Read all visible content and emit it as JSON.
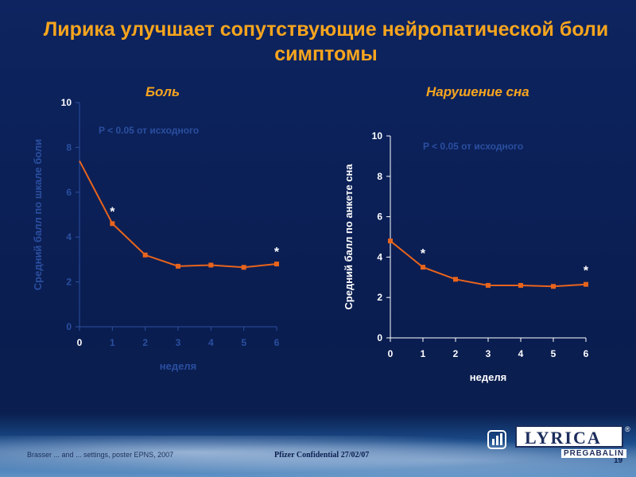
{
  "title": "Лирика улучшает сопутствующие нейропатической боли симптомы",
  "footer": {
    "reference": "Brasser ... and ... settings, poster EPNS, 2007",
    "confidential": "Pfizer Confidential 27/02/07",
    "page_number": "19"
  },
  "logo": {
    "brand": "LYRICA",
    "registered": "®",
    "sub": "PREGABALIN"
  },
  "icons": [
    "chart-icon",
    "speaker-icon"
  ],
  "colors": {
    "line": "#e8641c",
    "title": "#f7a51e",
    "axis_text": "#ffffff",
    "background": "#0b1f4f"
  },
  "chart_data": [
    {
      "type": "line",
      "title": "Боль",
      "xlabel": "неделя",
      "ylabel": "Средний балл по шкале боли",
      "xlim": [
        0,
        6
      ],
      "ylim": [
        0,
        10
      ],
      "x_ticks": [
        0,
        1,
        2,
        3,
        4,
        5,
        6
      ],
      "y_ticks": [
        0,
        2,
        4,
        6,
        8,
        10
      ],
      "x_tick_labels_visible": [
        "0"
      ],
      "y_tick_labels_visible": [
        "10"
      ],
      "annotation": "P < 0.05 от исходного",
      "series": [
        {
          "x": [
            0,
            1,
            2,
            3,
            4,
            5,
            6
          ],
          "y": [
            7.4,
            4.6,
            3.2,
            2.7,
            2.75,
            2.65,
            2.8
          ],
          "markers": [
            false,
            true,
            true,
            true,
            true,
            true,
            true
          ]
        }
      ],
      "significance": [
        {
          "x": 1,
          "label": "*"
        },
        {
          "x": 6,
          "label": "*"
        }
      ]
    },
    {
      "type": "line",
      "title": "Нарушение сна",
      "xlabel": "неделя",
      "ylabel": "Средний балл по анкете сна",
      "xlim": [
        0,
        6
      ],
      "ylim": [
        0,
        10
      ],
      "x_ticks": [
        0,
        1,
        2,
        3,
        4,
        5,
        6
      ],
      "y_ticks": [
        0,
        2,
        4,
        6,
        8,
        10
      ],
      "annotation": "P < 0.05 от исходного",
      "series": [
        {
          "x": [
            0,
            1,
            2,
            3,
            4,
            5,
            6
          ],
          "y": [
            4.8,
            3.5,
            2.9,
            2.6,
            2.6,
            2.55,
            2.65
          ],
          "markers": [
            true,
            true,
            true,
            true,
            true,
            true,
            true
          ]
        }
      ],
      "significance": [
        {
          "x": 1,
          "label": "*"
        },
        {
          "x": 6,
          "label": "*"
        }
      ]
    }
  ]
}
